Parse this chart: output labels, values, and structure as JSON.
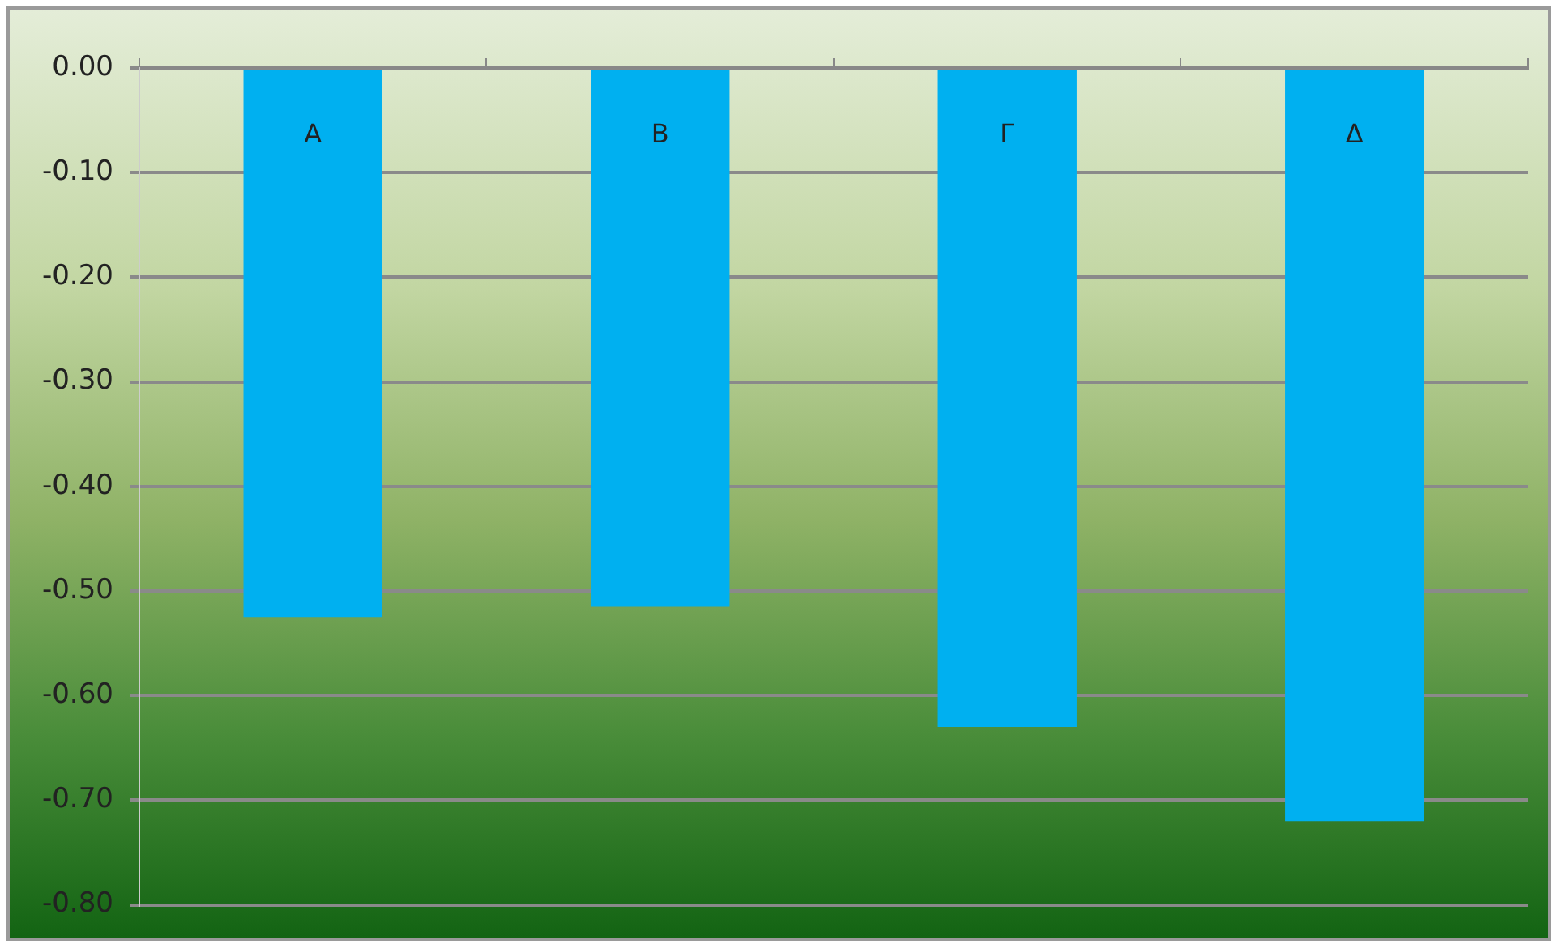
{
  "chart_data": {
    "type": "bar",
    "categories": [
      "A",
      "B",
      "Γ",
      "Δ"
    ],
    "values": [
      -0.525,
      -0.515,
      -0.63,
      -0.72
    ],
    "color": "#00b0f0",
    "ylim": [
      -0.8,
      0
    ],
    "yticks": [
      {
        "value": 0,
        "label": "0.00"
      },
      {
        "value": -0.1,
        "label": "-0.10"
      },
      {
        "value": -0.2,
        "label": "-0.20"
      },
      {
        "value": -0.3,
        "label": "-0.30"
      },
      {
        "value": -0.4,
        "label": "-0.40"
      },
      {
        "value": -0.5,
        "label": "-0.50"
      },
      {
        "value": -0.6,
        "label": "-0.60"
      },
      {
        "value": -0.7,
        "label": "-0.70"
      },
      {
        "value": -0.8,
        "label": "-0.80"
      }
    ],
    "grid": "y",
    "legend": false
  }
}
